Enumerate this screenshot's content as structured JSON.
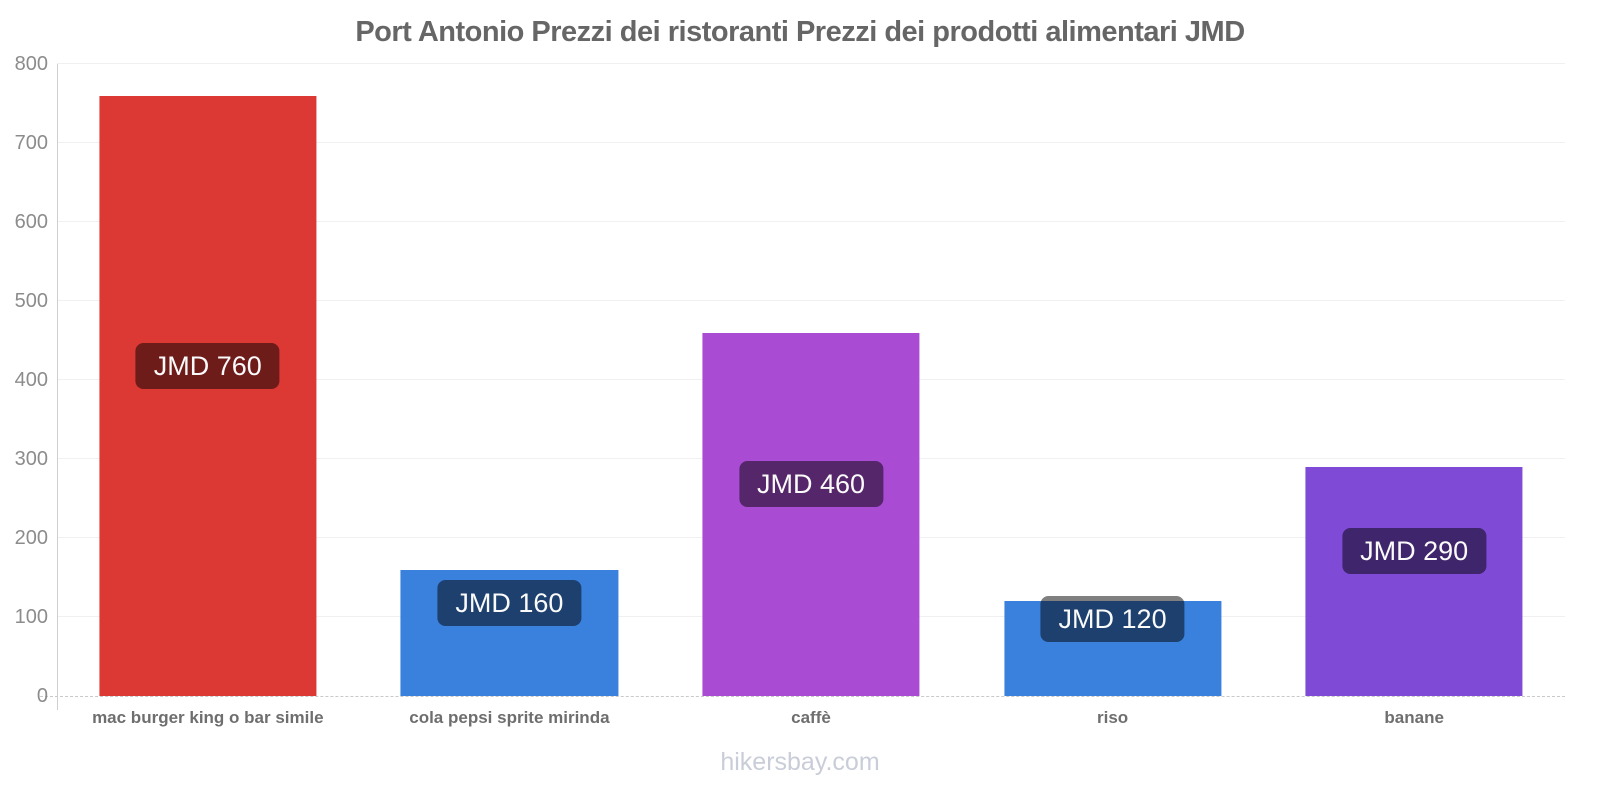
{
  "title": "Port Antonio Prezzi dei ristoranti Prezzi dei prodotti alimentari JMD",
  "watermark": "hikersbay.com",
  "chart_data": {
    "type": "bar",
    "title": "Port Antonio Prezzi dei ristoranti Prezzi dei prodotti alimentari JMD",
    "currency": "JMD",
    "categories": [
      "mac burger king o bar simile",
      "cola pepsi sprite mirinda",
      "caffè",
      "riso",
      "banane"
    ],
    "values": [
      760,
      160,
      460,
      120,
      290
    ],
    "value_labels": [
      "JMD 760",
      "JMD 160",
      "JMD 460",
      "JMD 120",
      "JMD 290"
    ],
    "bar_colors": [
      "#dc3834",
      "#3a81dd",
      "#aa4cd3",
      "#3a81dd",
      "#7f4ad6"
    ],
    "badge_background": "rgba(0,0,0,0.5)",
    "badge_text_color": "#fafafa",
    "xlabel": "",
    "ylabel": "",
    "ylim": [
      0,
      800
    ],
    "yticks": [
      0,
      100,
      200,
      300,
      400,
      500,
      600,
      700,
      800
    ],
    "grid": true,
    "legend": "none"
  }
}
